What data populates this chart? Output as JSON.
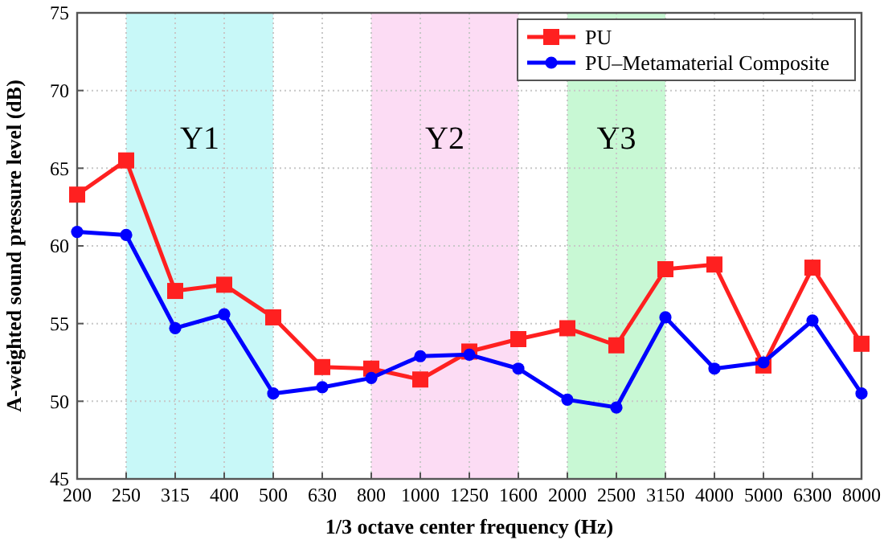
{
  "chart_data": {
    "type": "line",
    "xlabel": "1/3 octave center frequency (Hz)",
    "ylabel": "A-weighted sound pressure level (dB)",
    "categories": [
      "200",
      "250",
      "315",
      "400",
      "500",
      "630",
      "800",
      "1000",
      "1250",
      "1600",
      "2000",
      "2500",
      "3150",
      "4000",
      "5000",
      "6300",
      "8000"
    ],
    "series": [
      {
        "name": "PU",
        "color": "#ff2020",
        "marker": "square",
        "values": [
          63.3,
          65.5,
          57.1,
          57.5,
          55.4,
          52.2,
          52.1,
          51.4,
          53.2,
          54.0,
          54.7,
          53.6,
          58.5,
          58.8,
          52.3,
          58.6,
          53.7
        ]
      },
      {
        "name": "PU–Metamaterial Composite",
        "color": "#0000ff",
        "marker": "circle",
        "values": [
          60.9,
          60.7,
          54.7,
          55.6,
          50.5,
          50.9,
          51.5,
          52.9,
          53.0,
          52.1,
          50.1,
          49.6,
          55.4,
          52.1,
          52.5,
          55.2,
          50.5
        ]
      }
    ],
    "ylim": [
      45,
      75
    ],
    "yticks": [
      45,
      50,
      55,
      60,
      65,
      70,
      75
    ],
    "grid": true,
    "legend": "top right",
    "line_style": "solid",
    "bands": [
      {
        "axis": "x",
        "from": "250",
        "to": "500",
        "label": "Y1",
        "color": "#c8f8f8"
      },
      {
        "axis": "x",
        "from": "800",
        "to": "1600",
        "label": "Y2",
        "color": "#fcdcf4"
      },
      {
        "axis": "x",
        "from": "2000",
        "to": "3150",
        "label": "Y3",
        "color": "#c8f8d4"
      }
    ]
  }
}
